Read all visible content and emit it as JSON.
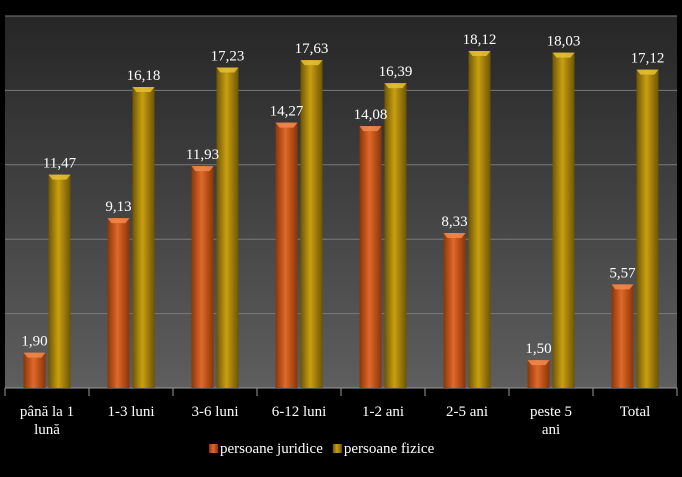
{
  "chart_data": {
    "type": "bar",
    "title": "",
    "xlabel": "",
    "ylabel": "",
    "ylim": [
      0,
      20
    ],
    "grid": true,
    "legend_position": "bottom",
    "categories": [
      [
        "până la 1",
        "lună"
      ],
      [
        "1-3 luni"
      ],
      [
        "3-6 luni"
      ],
      [
        "6-12 luni"
      ],
      [
        "1-2 ani"
      ],
      [
        "2-5 ani"
      ],
      [
        "peste 5",
        "ani"
      ],
      [
        "Total"
      ]
    ],
    "series": [
      {
        "name": "persoane juridice",
        "color": "#c8581a",
        "values": [
          1.9,
          9.13,
          11.93,
          14.27,
          14.08,
          8.33,
          1.5,
          5.57
        ],
        "labels": [
          "1,90",
          "9,13",
          "11,93",
          "14,27",
          "14,08",
          "8,33",
          "1,50",
          "5,57"
        ]
      },
      {
        "name": "persoane fizice",
        "color": "#a8840a",
        "values": [
          11.47,
          16.18,
          17.23,
          17.63,
          16.39,
          18.12,
          18.03,
          17.12
        ],
        "labels": [
          "11,47",
          "16,18",
          "17,23",
          "17,63",
          "16,39",
          "18,12",
          "18,03",
          "17,12"
        ]
      }
    ]
  }
}
